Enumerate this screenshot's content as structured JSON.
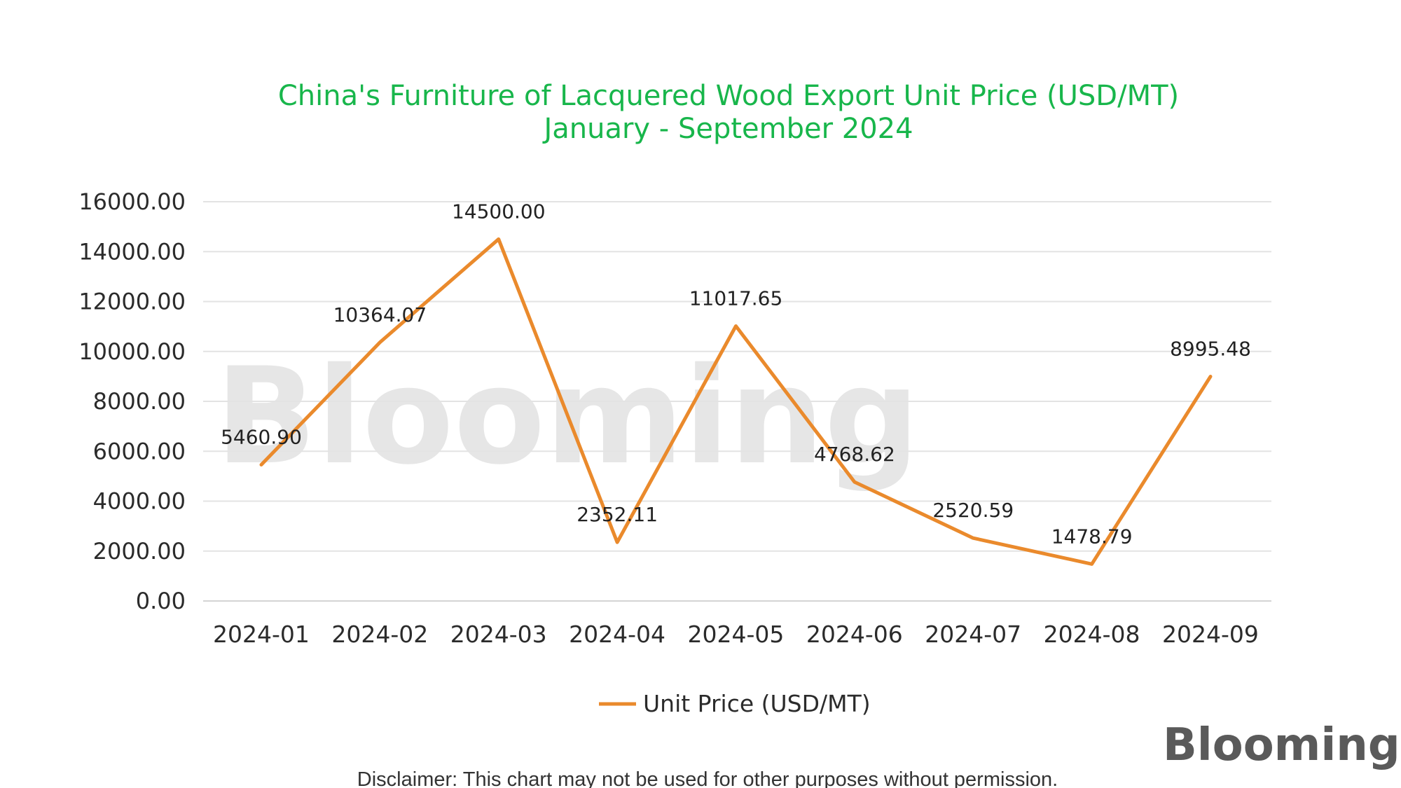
{
  "chart_data": {
    "type": "line",
    "title": "China's Furniture of Lacquered Wood Export Unit Price (USD/MT)",
    "subtitle": "January - September 2024",
    "categories": [
      "2024-01",
      "2024-02",
      "2024-03",
      "2024-04",
      "2024-05",
      "2024-06",
      "2024-07",
      "2024-08",
      "2024-09"
    ],
    "series": [
      {
        "name": "Unit Price (USD/MT)",
        "values": [
          5460.9,
          10364.07,
          14500.0,
          2352.11,
          11017.65,
          4768.62,
          2520.59,
          1478.79,
          8995.48
        ],
        "labels": [
          "5460.90",
          "10364.07",
          "14500.00",
          "2352.11",
          "11017.65",
          "4768.62",
          "2520.59",
          "1478.79",
          "8995.48"
        ]
      }
    ],
    "ylim": [
      0,
      16000
    ],
    "yticks": [
      "0.00",
      "2000.00",
      "4000.00",
      "6000.00",
      "8000.00",
      "10000.00",
      "12000.00",
      "14000.00",
      "16000.00"
    ],
    "grid": true,
    "legend": "bottom-center",
    "line_color": "#ea8a2c",
    "title_color": "#18b64b"
  },
  "watermark": {
    "text": "Blooming"
  },
  "logo": {
    "text": "Blooming"
  },
  "disclaimer": "Disclaimer: This chart may not be used for other purposes without permission."
}
